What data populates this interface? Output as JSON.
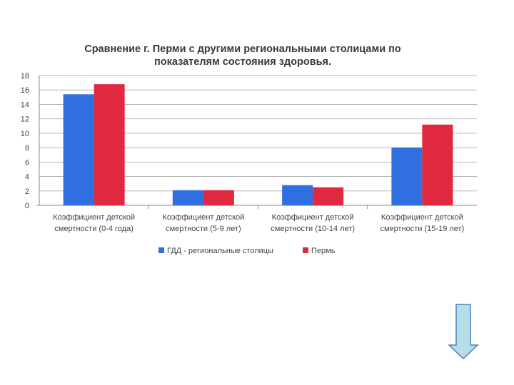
{
  "chart_data": {
    "type": "bar",
    "title_lines": [
      "Сравнение г. Перми с другими региональными столицами по",
      "показателям состояния здоровья."
    ],
    "categories": [
      [
        "Коэффициент детской",
        "смертности (0-4 года)"
      ],
      [
        "Коэффициент детской",
        "смертности (5-9 лет)"
      ],
      [
        "Коэффициент детской",
        "смертности (10-14 лет)"
      ],
      [
        "Коэффициент детской",
        "смертности (15-19 лет)"
      ]
    ],
    "series": [
      {
        "name": "ГДД - региональные столицы",
        "color": "#2f6fe0",
        "values": [
          15.4,
          2.1,
          2.8,
          8.0
        ]
      },
      {
        "name": "Пермь",
        "color": "#e0283e",
        "values": [
          16.8,
          2.1,
          2.5,
          11.2
        ]
      }
    ],
    "ylim": [
      0,
      18
    ],
    "yticks": [
      0,
      2,
      4,
      6,
      8,
      10,
      12,
      14,
      16,
      18
    ],
    "grid": true,
    "legend_position": "bottom"
  },
  "navigation": {
    "down_arrow_icon": "down-arrow-icon",
    "arrow_fill": "#b7dde8",
    "arrow_stroke": "#4f81bd"
  }
}
